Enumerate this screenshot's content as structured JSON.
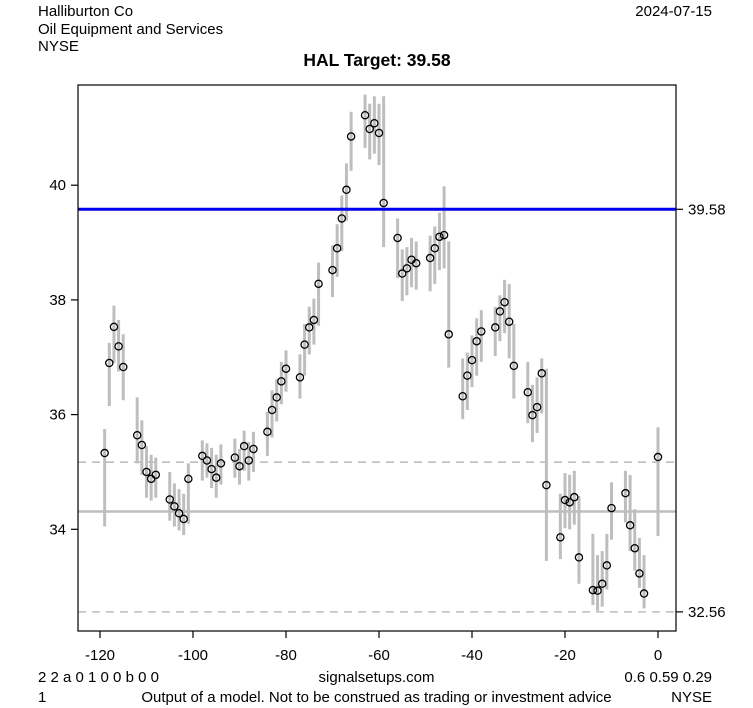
{
  "header": {
    "company": "Halliburton Co",
    "industry": "Oil Equipment and Services",
    "exchange": "NYSE",
    "date": "2024-07-15"
  },
  "chart": {
    "title": "HAL Target: 39.58"
  },
  "footer": {
    "row1_left": "2 2 a 0 1 0 0 b 0 0",
    "row1_center": "signalsetups.com",
    "row1_right": "0.6 0.59 0.29",
    "row2_left": "1",
    "row2_center": "Output of a model. Not to be construed as trading or investment advice",
    "row2_right": "NYSE"
  },
  "chart_data": {
    "type": "bar",
    "subtype": "high-low-close range bars with open-circle close markers",
    "title": "HAL Target: 39.58",
    "xlabel": "",
    "ylabel": "",
    "x_axis": {
      "ticks": [
        -120,
        -100,
        -80,
        -60,
        -40,
        -20,
        0
      ],
      "range": [
        -124.7,
        3.9
      ]
    },
    "y_axis": {
      "ticks": [
        34,
        36,
        38,
        40
      ],
      "range": [
        32.22,
        41.78
      ]
    },
    "grid": false,
    "legend": "none",
    "colors": {
      "bar": "#bebebe",
      "target_line": "#0000ee",
      "reference": "#bebebe",
      "marker_stroke": "#000000"
    },
    "reference_lines": [
      {
        "name": "target",
        "value": 39.58,
        "style": "solid",
        "color": "#0000ee",
        "width": 3,
        "label": "39.58"
      },
      {
        "name": "mean",
        "value": 34.31,
        "style": "solid",
        "color": "#bebebe",
        "width": 2.5,
        "label": ""
      },
      {
        "name": "upper-band",
        "value": 35.17,
        "style": "dashed",
        "color": "#bebebe",
        "width": 1.6,
        "label": ""
      },
      {
        "name": "lower-band",
        "value": 32.56,
        "style": "dashed",
        "color": "#bebebe",
        "width": 1.6,
        "label": "32.56"
      }
    ],
    "right_labels": [
      {
        "value": 39.58,
        "label": "39.58"
      },
      {
        "value": 32.56,
        "label": "32.56"
      }
    ],
    "columns": [
      "t_days",
      "low",
      "high",
      "close"
    ],
    "points": [
      [
        -119,
        34.05,
        35.75,
        35.33
      ],
      [
        -118,
        36.15,
        37.25,
        36.9
      ],
      [
        -117,
        36.9,
        37.9,
        37.53
      ],
      [
        -116,
        36.75,
        37.65,
        37.19
      ],
      [
        -115,
        36.25,
        37.4,
        36.83
      ],
      [
        -112,
        35.15,
        36.3,
        35.64
      ],
      [
        -111,
        34.95,
        35.9,
        35.47
      ],
      [
        -110,
        34.55,
        35.45,
        35.0
      ],
      [
        -109,
        34.5,
        35.3,
        34.88
      ],
      [
        -108,
        34.55,
        35.25,
        34.95
      ],
      [
        -105,
        34.15,
        35.0,
        34.52
      ],
      [
        -104,
        34.05,
        34.8,
        34.4
      ],
      [
        -103,
        33.98,
        34.7,
        34.28
      ],
      [
        -102,
        33.9,
        34.62,
        34.18
      ],
      [
        -101,
        34.1,
        35.15,
        34.88
      ],
      [
        -98,
        34.85,
        35.55,
        35.28
      ],
      [
        -97,
        34.9,
        35.5,
        35.2
      ],
      [
        -96,
        34.72,
        35.42,
        35.05
      ],
      [
        -95,
        34.55,
        35.3,
        34.9
      ],
      [
        -94,
        34.78,
        35.48,
        35.15
      ],
      [
        -91,
        34.9,
        35.58,
        35.25
      ],
      [
        -90,
        34.78,
        35.4,
        35.1
      ],
      [
        -89,
        35.02,
        35.72,
        35.45
      ],
      [
        -88,
        34.85,
        35.52,
        35.2
      ],
      [
        -87,
        35.0,
        35.7,
        35.4
      ],
      [
        -84,
        35.28,
        36.05,
        35.7
      ],
      [
        -83,
        35.6,
        36.42,
        36.08
      ],
      [
        -82,
        35.88,
        36.62,
        36.3
      ],
      [
        -81,
        36.18,
        36.92,
        36.58
      ],
      [
        -80,
        36.4,
        37.12,
        36.8
      ],
      [
        -77,
        36.28,
        37.05,
        36.65
      ],
      [
        -76,
        36.68,
        37.58,
        37.22
      ],
      [
        -75,
        37.05,
        37.88,
        37.52
      ],
      [
        -74,
        37.22,
        38.02,
        37.65
      ],
      [
        -73,
        37.55,
        38.65,
        38.28
      ],
      [
        -70,
        38.05,
        38.95,
        38.52
      ],
      [
        -69,
        38.4,
        39.32,
        38.9
      ],
      [
        -68,
        38.85,
        39.82,
        39.42
      ],
      [
        -67,
        39.38,
        40.38,
        39.92
      ],
      [
        -66,
        40.25,
        41.28,
        40.85
      ],
      [
        -63,
        40.65,
        41.58,
        41.22
      ],
      [
        -62,
        40.45,
        41.42,
        40.98
      ],
      [
        -61,
        40.55,
        41.55,
        41.08
      ],
      [
        -60,
        40.35,
        41.42,
        40.91
      ],
      [
        -59,
        38.92,
        41.55,
        39.69
      ],
      [
        -56,
        38.38,
        39.42,
        39.08
      ],
      [
        -55,
        37.98,
        38.88,
        38.46
      ],
      [
        -54,
        38.08,
        38.92,
        38.55
      ],
      [
        -53,
        38.22,
        39.08,
        38.7
      ],
      [
        -52,
        38.18,
        39.02,
        38.64
      ],
      [
        -49,
        38.15,
        39.12,
        38.73
      ],
      [
        -48,
        38.28,
        39.28,
        38.9
      ],
      [
        -47,
        38.52,
        39.52,
        39.1
      ],
      [
        -46,
        38.55,
        39.98,
        39.13
      ],
      [
        -45,
        36.82,
        39.02,
        37.4
      ],
      [
        -42,
        35.92,
        36.98,
        36.32
      ],
      [
        -41,
        36.08,
        37.08,
        36.68
      ],
      [
        -40,
        36.48,
        37.38,
        36.95
      ],
      [
        -39,
        36.68,
        37.68,
        37.28
      ],
      [
        -38,
        36.92,
        37.82,
        37.45
      ],
      [
        -35,
        37.02,
        37.88,
        37.52
      ],
      [
        -34,
        37.28,
        38.08,
        37.8
      ],
      [
        -33,
        37.42,
        38.35,
        37.96
      ],
      [
        -32,
        36.98,
        38.28,
        37.62
      ],
      [
        -31,
        36.28,
        37.58,
        36.85
      ],
      [
        -28,
        35.85,
        36.92,
        36.39
      ],
      [
        -27,
        35.52,
        36.52,
        35.99
      ],
      [
        -26,
        35.68,
        36.65,
        36.13
      ],
      [
        -25,
        36.02,
        36.98,
        36.72
      ],
      [
        -24,
        33.45,
        36.8,
        34.77
      ],
      [
        -21,
        33.48,
        34.62,
        33.86
      ],
      [
        -20,
        34.02,
        34.98,
        34.51
      ],
      [
        -19,
        34.0,
        34.95,
        34.47
      ],
      [
        -18,
        34.08,
        35.02,
        34.56
      ],
      [
        -17,
        33.05,
        34.58,
        33.51
      ],
      [
        -14,
        32.68,
        33.92,
        32.94
      ],
      [
        -13,
        32.58,
        33.55,
        32.93
      ],
      [
        -12,
        32.65,
        33.62,
        33.05
      ],
      [
        -11,
        32.95,
        33.92,
        33.37
      ],
      [
        -10,
        33.82,
        34.82,
        34.37
      ],
      [
        -7,
        34.12,
        35.02,
        34.63
      ],
      [
        -6,
        33.62,
        34.95,
        34.07
      ],
      [
        -5,
        33.28,
        34.35,
        33.67
      ],
      [
        -4,
        32.98,
        33.85,
        33.23
      ],
      [
        -3,
        32.62,
        33.55,
        32.88
      ],
      [
        0,
        33.88,
        35.78,
        35.26
      ]
    ]
  }
}
